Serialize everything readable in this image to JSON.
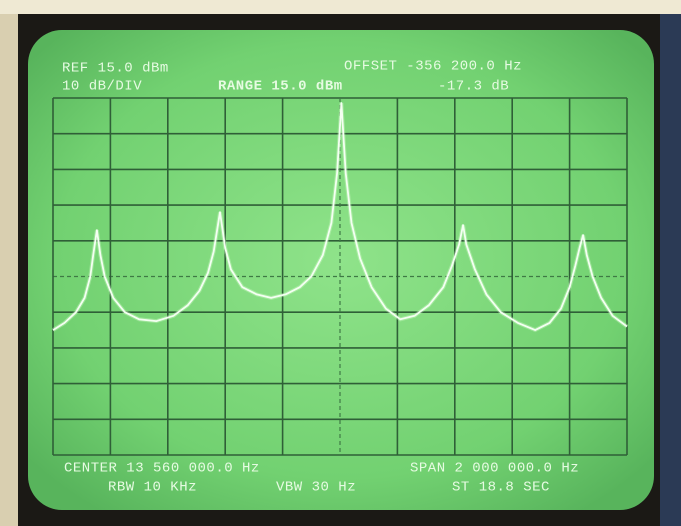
{
  "screen_text": {
    "ref": "REF 15.0 dBm",
    "scale": "10 dB/DIV",
    "range": "RANGE 15.0 dBm",
    "offset": "OFFSET -356 200.0 Hz",
    "offset_db": "-17.3 dB",
    "center": "CENTER 13 560 000.0 Hz",
    "span": "SPAN 2 000 000.0 Hz",
    "rbw": "RBW 10 KHz",
    "vbw": "VBW 30 Hz",
    "sweep": "ST 18.8 SEC"
  },
  "chart_data": {
    "type": "line",
    "color": "#f4fff2",
    "grid": true,
    "xlim": [
      12560000,
      14560000
    ],
    "ylim": [
      -85,
      15
    ],
    "xticks": [
      12560000,
      12760000,
      12960000,
      13160000,
      13360000,
      13560000,
      13760000,
      13960000,
      14160000,
      14360000,
      14560000
    ],
    "yticks": [
      -85,
      -75,
      -65,
      -55,
      -45,
      -35,
      -25,
      -15,
      -5,
      5,
      15
    ],
    "x": [
      12560000,
      12600000,
      12640000,
      12670000,
      12690000,
      12700000,
      12713000,
      12725000,
      12740000,
      12770000,
      12810000,
      12860000,
      12920000,
      12980000,
      13030000,
      13070000,
      13100000,
      13120000,
      13142000,
      13160000,
      13180000,
      13220000,
      13270000,
      13320000,
      13370000,
      13420000,
      13460000,
      13500000,
      13530000,
      13550000,
      13565000,
      13580000,
      13600000,
      13630000,
      13670000,
      13720000,
      13770000,
      13820000,
      13870000,
      13920000,
      13950000,
      13975000,
      13989000,
      14000000,
      14030000,
      14070000,
      14120000,
      14180000,
      14240000,
      14290000,
      14330000,
      14360000,
      14380000,
      14395000,
      14407000,
      14420000,
      14440000,
      14470000,
      14510000,
      14560000
    ],
    "values": [
      -50,
      -48,
      -45,
      -41,
      -35,
      -29,
      -22,
      -29,
      -35,
      -41,
      -45,
      -47,
      -47.5,
      -46,
      -43,
      -39,
      -34,
      -28,
      -17,
      -27,
      -33,
      -38,
      -40,
      -41,
      -40,
      -38,
      -35,
      -29,
      -20,
      -6,
      13.6,
      -6,
      -20,
      -30,
      -38,
      -44,
      -47,
      -46,
      -43,
      -38,
      -32,
      -26,
      -20.6,
      -26,
      -33,
      -40,
      -45,
      -48,
      -50,
      -48,
      -44,
      -38,
      -32,
      -27,
      -23.4,
      -29,
      -35,
      -41,
      -46,
      -49
    ]
  }
}
